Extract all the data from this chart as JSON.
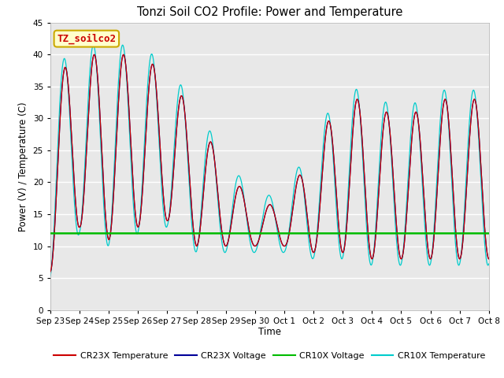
{
  "title": "Tonzi Soil CO2 Profile: Power and Temperature",
  "ylabel": "Power (V) / Temperature (C)",
  "xlabel": "Time",
  "ylim": [
    0,
    45
  ],
  "annotation_text": "TZ_soilco2",
  "annotation_bg": "#ffffcc",
  "annotation_border": "#ccaa00",
  "figure_bg": "#ffffff",
  "plot_bg": "#e8e8e8",
  "cr23x_temp_color": "#cc0000",
  "cr23x_volt_color": "#000099",
  "cr10x_volt_color": "#00bb00",
  "cr10x_temp_color": "#00cccc",
  "green_line_value": 12.0,
  "x_tick_labels": [
    "Sep 23",
    "Sep 24",
    "Sep 25",
    "Sep 26",
    "Sep 27",
    "Sep 28",
    "Sep 29",
    "Sep 30",
    "Oct 1",
    "Oct 2",
    "Oct 3",
    "Oct 4",
    "Oct 5",
    "Oct 6",
    "Oct 7",
    "Oct 8"
  ],
  "legend_entries": [
    "CR23X Temperature",
    "CR23X Voltage",
    "CR10X Voltage",
    "CR10X Temperature"
  ],
  "peaks": [
    36,
    40,
    40,
    40,
    37,
    30,
    22.5,
    16,
    17,
    25,
    34,
    32,
    30,
    32,
    34
  ],
  "mins_env": [
    6,
    13,
    11,
    13,
    14,
    10,
    10,
    10,
    10,
    9,
    9,
    8,
    8,
    8,
    8
  ]
}
